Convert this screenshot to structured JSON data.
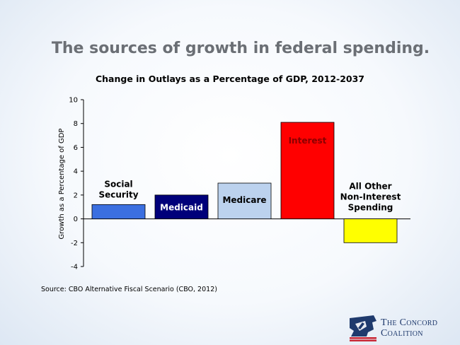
{
  "slide": {
    "title": "The sources of growth in federal spending.",
    "source": "Source: CBO Alternative Fiscal Scenario (CBO, 2012)"
  },
  "logo": {
    "line1": "The Concord",
    "line2": "Coalition",
    "colors": {
      "navy": "#1f3a6d",
      "red": "#c8202f"
    }
  },
  "chart_data": {
    "type": "bar",
    "title": "Change in Outlays as a Percentage of GDP, 2012-2037",
    "ylabel": "Growth as a Percentage of GDP",
    "xlabel": "",
    "ylim": [
      -4,
      10
    ],
    "yticks": [
      -4,
      -2,
      0,
      2,
      4,
      6,
      8,
      10
    ],
    "grid": false,
    "legend": "none",
    "categories": [
      "Social\nSecurity",
      "Medicaid",
      "Medicare",
      "Interest",
      "All Other\nNon-Interest\nSpending"
    ],
    "values": [
      1.2,
      2.0,
      3.0,
      8.1,
      -2.0
    ],
    "colors": [
      "#3b6fe0",
      "#00007a",
      "#bcd2ee",
      "#ff0000",
      "#ffff00"
    ],
    "label_colors": [
      "#000000",
      "#ffffff",
      "#000000",
      "#8b0000",
      "#000000"
    ],
    "label_positions": [
      "above",
      "inside",
      "inside",
      "inside",
      "above"
    ]
  }
}
